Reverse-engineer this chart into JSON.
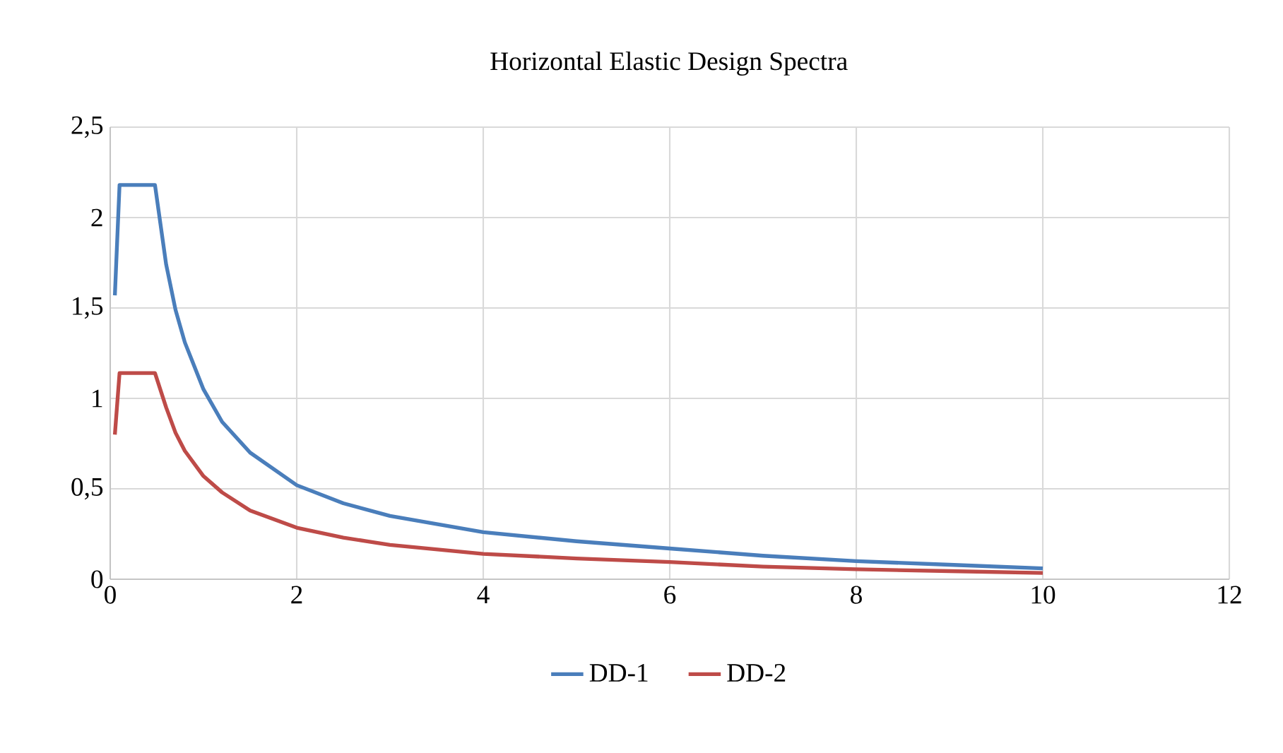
{
  "chart_data": {
    "type": "line",
    "title": "Horizontal Elastic Design Spectra",
    "x": [
      0.05,
      0.1,
      0.48,
      0.6,
      0.7,
      0.8,
      1,
      1.2,
      1.5,
      2,
      2.5,
      3,
      4,
      5,
      6,
      7,
      8,
      9,
      10
    ],
    "series": [
      {
        "name": "DD-1",
        "color": "#4a7ebb",
        "values": [
          1.57,
          2.18,
          2.18,
          1.74,
          1.49,
          1.31,
          1.05,
          0.87,
          0.7,
          0.52,
          0.42,
          0.35,
          0.26,
          0.21,
          0.17,
          0.13,
          0.1,
          0.08,
          0.06
        ]
      },
      {
        "name": "DD-2",
        "color": "#be4b48",
        "values": [
          0.8,
          1.14,
          1.14,
          0.95,
          0.81,
          0.71,
          0.57,
          0.48,
          0.38,
          0.285,
          0.23,
          0.19,
          0.14,
          0.115,
          0.095,
          0.07,
          0.055,
          0.045,
          0.035
        ]
      }
    ],
    "xlim": [
      0,
      12
    ],
    "xticks": [
      0,
      2,
      4,
      6,
      8,
      10,
      12
    ],
    "ylim": [
      0,
      2.5
    ],
    "yticks": [
      0,
      {
        "value": 0.5,
        "label": "0,5"
      },
      1,
      {
        "value": 1.5,
        "label": "1,5"
      },
      2,
      {
        "value": 2.5,
        "label": "2,5"
      }
    ],
    "grid": true,
    "legend": "bottom",
    "marker": "none",
    "line_style": "solid"
  }
}
